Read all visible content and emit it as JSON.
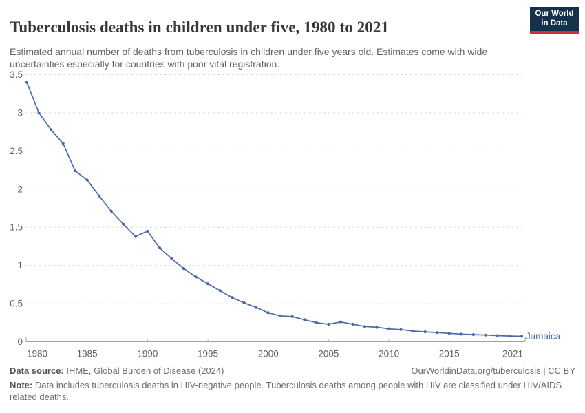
{
  "header": {
    "title": "Tuberculosis deaths in children under five, 1980 to 2021",
    "subtitle": "Estimated annual number of deaths from tuberculosis in children under five years old. Estimates come with wide uncertainties especially for countries with poor vital registration.",
    "logo": {
      "line1": "Our World",
      "line2": "in Data"
    }
  },
  "chart_data": {
    "type": "line",
    "title": "Tuberculosis deaths in children under five, 1980 to 2021",
    "xlabel": "",
    "ylabel": "",
    "grid": true,
    "xlim": [
      1980,
      2021
    ],
    "ylim": [
      0,
      3.5
    ],
    "x_ticks": [
      1980,
      1985,
      1990,
      1995,
      2000,
      2005,
      2010,
      2015,
      2021
    ],
    "y_ticks": [
      0,
      0.5,
      1,
      1.5,
      2,
      2.5,
      3,
      3.5
    ],
    "x": [
      1980,
      1981,
      1982,
      1983,
      1984,
      1985,
      1986,
      1987,
      1988,
      1989,
      1990,
      1991,
      1992,
      1993,
      1994,
      1995,
      1996,
      1997,
      1998,
      1999,
      2000,
      2001,
      2002,
      2003,
      2004,
      2005,
      2006,
      2007,
      2008,
      2009,
      2010,
      2011,
      2012,
      2013,
      2014,
      2015,
      2016,
      2017,
      2018,
      2019,
      2020,
      2021
    ],
    "series": [
      {
        "name": "Jamaica",
        "color": "#4a69a8",
        "values": [
          3.4,
          3.0,
          2.78,
          2.6,
          2.24,
          2.12,
          1.91,
          1.71,
          1.54,
          1.38,
          1.45,
          1.23,
          1.09,
          0.96,
          0.85,
          0.76,
          0.67,
          0.58,
          0.51,
          0.45,
          0.38,
          0.34,
          0.33,
          0.29,
          0.25,
          0.23,
          0.26,
          0.23,
          0.2,
          0.19,
          0.17,
          0.16,
          0.14,
          0.13,
          0.12,
          0.11,
          0.1,
          0.094,
          0.088,
          0.081,
          0.076,
          0.072
        ]
      }
    ],
    "entity_label": "Jamaica",
    "colors": {
      "line": "#4a69a8",
      "grid": "#dcdcdc",
      "axis": "#a0a0a0",
      "tick_text": "#606060"
    },
    "legend_position": "end-of-line"
  },
  "footer": {
    "datasource_label": "Data source:",
    "datasource_value": " IHME, Global Burden of Disease (2024)",
    "link": "OurWorldinData.org/tuberculosis | CC BY",
    "note_label": "Note:",
    "note_value": " Data includes tuberculosis deaths in HIV-negative people. Tuberculosis deaths among people with HIV are classified under HIV/AIDS related deaths."
  }
}
